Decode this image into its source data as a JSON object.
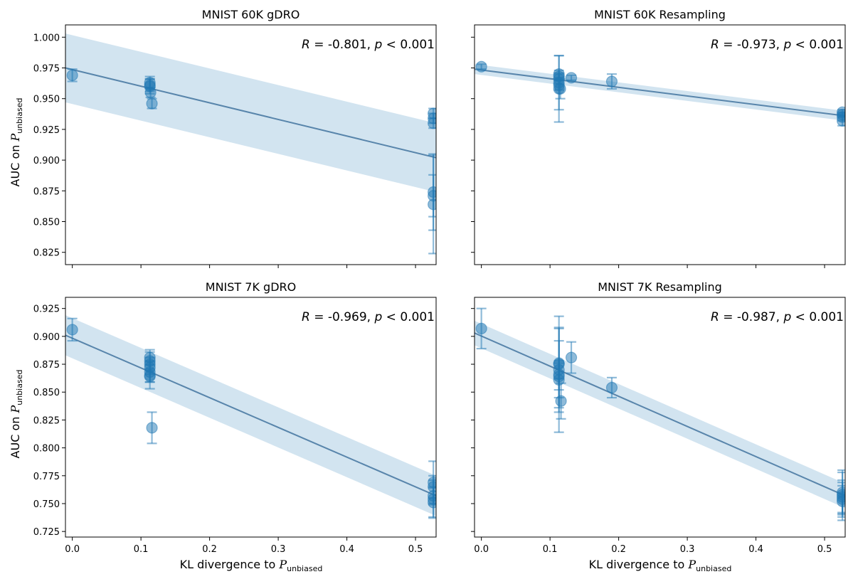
{
  "figure": {
    "ylabel_main": "AUC on ",
    "ylabel_script": "P",
    "ylabel_sub": "unbiased",
    "xlabel_main": "KL divergence to ",
    "xlabel_script": "P",
    "xlabel_sub": "unbiased"
  },
  "chart_data": [
    {
      "type": "scatter",
      "title": "MNIST 60K gDRO",
      "stat": {
        "R": "-0.801",
        "p": "0.001"
      },
      "xlim": [
        -0.01,
        0.53
      ],
      "ylim": [
        0.815,
        1.01
      ],
      "xticks": [
        0.0,
        0.1,
        0.2,
        0.3,
        0.4,
        0.5
      ],
      "xtick_labels": [],
      "yticks": [
        0.825,
        0.85,
        0.875,
        0.9,
        0.925,
        0.95,
        0.975,
        1.0
      ],
      "ytick_labels": [
        "0.825",
        "0.850",
        "0.875",
        "0.900",
        "0.925",
        "0.950",
        "0.975",
        "1.000"
      ],
      "fit": {
        "x": [
          -0.01,
          0.53
        ],
        "y": [
          0.975,
          0.902
        ],
        "band_half": [
          0.028,
          0.028
        ]
      },
      "points": [
        {
          "x": 0.0,
          "y": 0.969,
          "err": 0.005
        },
        {
          "x": 0.113,
          "y": 0.963,
          "err": 0.005
        },
        {
          "x": 0.113,
          "y": 0.961,
          "err": 0.005
        },
        {
          "x": 0.113,
          "y": 0.96,
          "err": 0.006
        },
        {
          "x": 0.114,
          "y": 0.955,
          "err": 0.004
        },
        {
          "x": 0.116,
          "y": 0.946,
          "err": 0.004
        },
        {
          "x": 0.526,
          "y": 0.938,
          "err": 0.004
        },
        {
          "x": 0.526,
          "y": 0.934,
          "err": 0.004
        },
        {
          "x": 0.526,
          "y": 0.93,
          "err": 0.004
        },
        {
          "x": 0.526,
          "y": 0.874,
          "err": 0.031
        },
        {
          "x": 0.526,
          "y": 0.871,
          "err": 0.017
        },
        {
          "x": 0.526,
          "y": 0.864,
          "err": 0.04
        }
      ]
    },
    {
      "type": "scatter",
      "title": "MNIST 60K Resampling",
      "stat": {
        "R": "-0.973",
        "p": "0.001"
      },
      "xlim": [
        -0.01,
        0.53
      ],
      "ylim": [
        0.815,
        1.01
      ],
      "xticks": [
        0.0,
        0.1,
        0.2,
        0.3,
        0.4,
        0.5
      ],
      "xtick_labels": [],
      "yticks": [
        0.825,
        0.85,
        0.875,
        0.9,
        0.925,
        0.95,
        0.975,
        1.0
      ],
      "ytick_labels": [],
      "fit": {
        "x": [
          -0.01,
          0.53
        ],
        "y": [
          0.974,
          0.936
        ],
        "band_half": [
          0.004,
          0.004
        ]
      },
      "points": [
        {
          "x": 0.0,
          "y": 0.976,
          "err": 0.002
        },
        {
          "x": 0.113,
          "y": 0.97,
          "err": 0.003
        },
        {
          "x": 0.113,
          "y": 0.968,
          "err": 0.003
        },
        {
          "x": 0.113,
          "y": 0.966,
          "err": 0.004
        },
        {
          "x": 0.113,
          "y": 0.963,
          "err": 0.022
        },
        {
          "x": 0.113,
          "y": 0.961,
          "err": 0.004
        },
        {
          "x": 0.113,
          "y": 0.958,
          "err": 0.027
        },
        {
          "x": 0.115,
          "y": 0.958,
          "err": 0.008
        },
        {
          "x": 0.131,
          "y": 0.967,
          "err": 0.002
        },
        {
          "x": 0.19,
          "y": 0.964,
          "err": 0.006
        },
        {
          "x": 0.526,
          "y": 0.939,
          "err": 0.002
        },
        {
          "x": 0.526,
          "y": 0.937,
          "err": 0.002
        },
        {
          "x": 0.526,
          "y": 0.935,
          "err": 0.003
        },
        {
          "x": 0.526,
          "y": 0.932,
          "err": 0.004
        }
      ]
    },
    {
      "type": "scatter",
      "title": "MNIST 7K gDRO",
      "stat": {
        "R": "-0.969",
        "p": "0.001"
      },
      "xlim": [
        -0.01,
        0.53
      ],
      "ylim": [
        0.72,
        0.935
      ],
      "xticks": [
        0.0,
        0.1,
        0.2,
        0.3,
        0.4,
        0.5
      ],
      "xtick_labels": [
        "0.0",
        "0.1",
        "0.2",
        "0.3",
        "0.4",
        "0.5"
      ],
      "yticks": [
        0.725,
        0.75,
        0.775,
        0.8,
        0.825,
        0.85,
        0.875,
        0.9,
        0.925
      ],
      "ytick_labels": [
        "0.725",
        "0.750",
        "0.775",
        "0.800",
        "0.825",
        "0.850",
        "0.875",
        "0.900",
        "0.925"
      ],
      "fit": {
        "x": [
          -0.01,
          0.53
        ],
        "y": [
          0.901,
          0.757
        ],
        "band_half": [
          0.018,
          0.018
        ]
      },
      "points": [
        {
          "x": 0.0,
          "y": 0.906,
          "err": 0.01
        },
        {
          "x": 0.113,
          "y": 0.881,
          "err": 0.007
        },
        {
          "x": 0.113,
          "y": 0.878,
          "err": 0.008
        },
        {
          "x": 0.113,
          "y": 0.875,
          "err": 0.006
        },
        {
          "x": 0.113,
          "y": 0.872,
          "err": 0.006
        },
        {
          "x": 0.113,
          "y": 0.868,
          "err": 0.009
        },
        {
          "x": 0.113,
          "y": 0.865,
          "err": 0.006
        },
        {
          "x": 0.113,
          "y": 0.864,
          "err": 0.011
        },
        {
          "x": 0.116,
          "y": 0.818,
          "err": 0.014
        },
        {
          "x": 0.526,
          "y": 0.769,
          "err": 0.019
        },
        {
          "x": 0.526,
          "y": 0.765,
          "err": 0.01
        },
        {
          "x": 0.526,
          "y": 0.757,
          "err": 0.008
        },
        {
          "x": 0.526,
          "y": 0.754,
          "err": 0.017
        },
        {
          "x": 0.526,
          "y": 0.751,
          "err": 0.013
        }
      ]
    },
    {
      "type": "scatter",
      "title": "MNIST 7K Resampling",
      "stat": {
        "R": "-0.987",
        "p": "0.001"
      },
      "xlim": [
        -0.01,
        0.53
      ],
      "ylim": [
        0.72,
        0.935
      ],
      "xticks": [
        0.0,
        0.1,
        0.2,
        0.3,
        0.4,
        0.5
      ],
      "xtick_labels": [
        "0.0",
        "0.1",
        "0.2",
        "0.3",
        "0.4",
        "0.5"
      ],
      "yticks": [
        0.725,
        0.75,
        0.775,
        0.8,
        0.825,
        0.85,
        0.875,
        0.9,
        0.925
      ],
      "ytick_labels": [],
      "fit": {
        "x": [
          -0.01,
          0.53
        ],
        "y": [
          0.903,
          0.757
        ],
        "band_half": [
          0.011,
          0.011
        ]
      },
      "points": [
        {
          "x": 0.0,
          "y": 0.907,
          "err": 0.018
        },
        {
          "x": 0.113,
          "y": 0.876,
          "err": 0.031
        },
        {
          "x": 0.113,
          "y": 0.875,
          "err": 0.043
        },
        {
          "x": 0.113,
          "y": 0.87,
          "err": 0.008
        },
        {
          "x": 0.113,
          "y": 0.866,
          "err": 0.03
        },
        {
          "x": 0.113,
          "y": 0.864,
          "err": 0.012
        },
        {
          "x": 0.113,
          "y": 0.861,
          "err": 0.047
        },
        {
          "x": 0.116,
          "y": 0.842,
          "err": 0.016
        },
        {
          "x": 0.131,
          "y": 0.881,
          "err": 0.014
        },
        {
          "x": 0.19,
          "y": 0.854,
          "err": 0.009
        },
        {
          "x": 0.526,
          "y": 0.76,
          "err": 0.02
        },
        {
          "x": 0.526,
          "y": 0.758,
          "err": 0.02
        },
        {
          "x": 0.526,
          "y": 0.756,
          "err": 0.015
        },
        {
          "x": 0.526,
          "y": 0.754,
          "err": 0.012
        },
        {
          "x": 0.526,
          "y": 0.752,
          "err": 0.017
        }
      ]
    }
  ]
}
